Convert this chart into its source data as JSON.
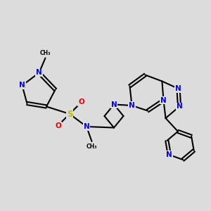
{
  "bg_color": "#dcdcdc",
  "bond_color": "#000000",
  "bond_width": 1.5,
  "atom_colors": {
    "N": "#0000ee",
    "S": "#bbbb00",
    "O": "#ee0000",
    "C": "#000000"
  },
  "font_size_atom": 7.5,
  "font_size_small": 6.5
}
